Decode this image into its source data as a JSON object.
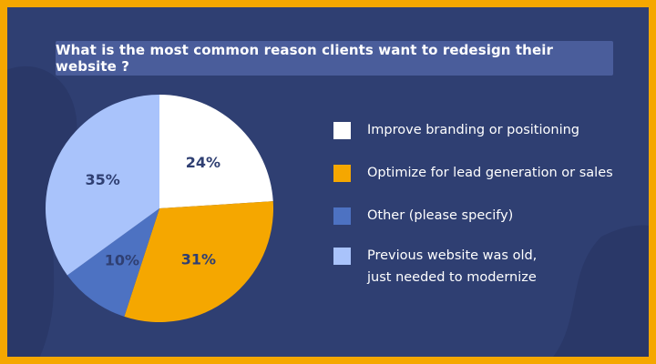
{
  "title": "What is the most common reason clients want to redesign their website ?",
  "colors": {
    "background": "#2f3f72",
    "border": "#f5a700",
    "title_box": "#4a5d9b",
    "label_dark": "#2f3f72"
  },
  "chart_data": {
    "type": "pie",
    "title": "What is the most common reason clients want to redesign their website ?",
    "slices": [
      {
        "label": "Improve branding or positioning",
        "value": 24,
        "display": "24%",
        "color": "#ffffff"
      },
      {
        "label": "Optimize for lead generation or sales",
        "value": 31,
        "display": "31%",
        "color": "#f5a700"
      },
      {
        "label": "Other (please specify)",
        "value": 10,
        "display": "10%",
        "color": "#4d72c2"
      },
      {
        "label": "Previous website was old,\njust needed to modernize",
        "value": 35,
        "display": "35%",
        "color": "#a9c3fb"
      }
    ],
    "legend_position": "right"
  }
}
